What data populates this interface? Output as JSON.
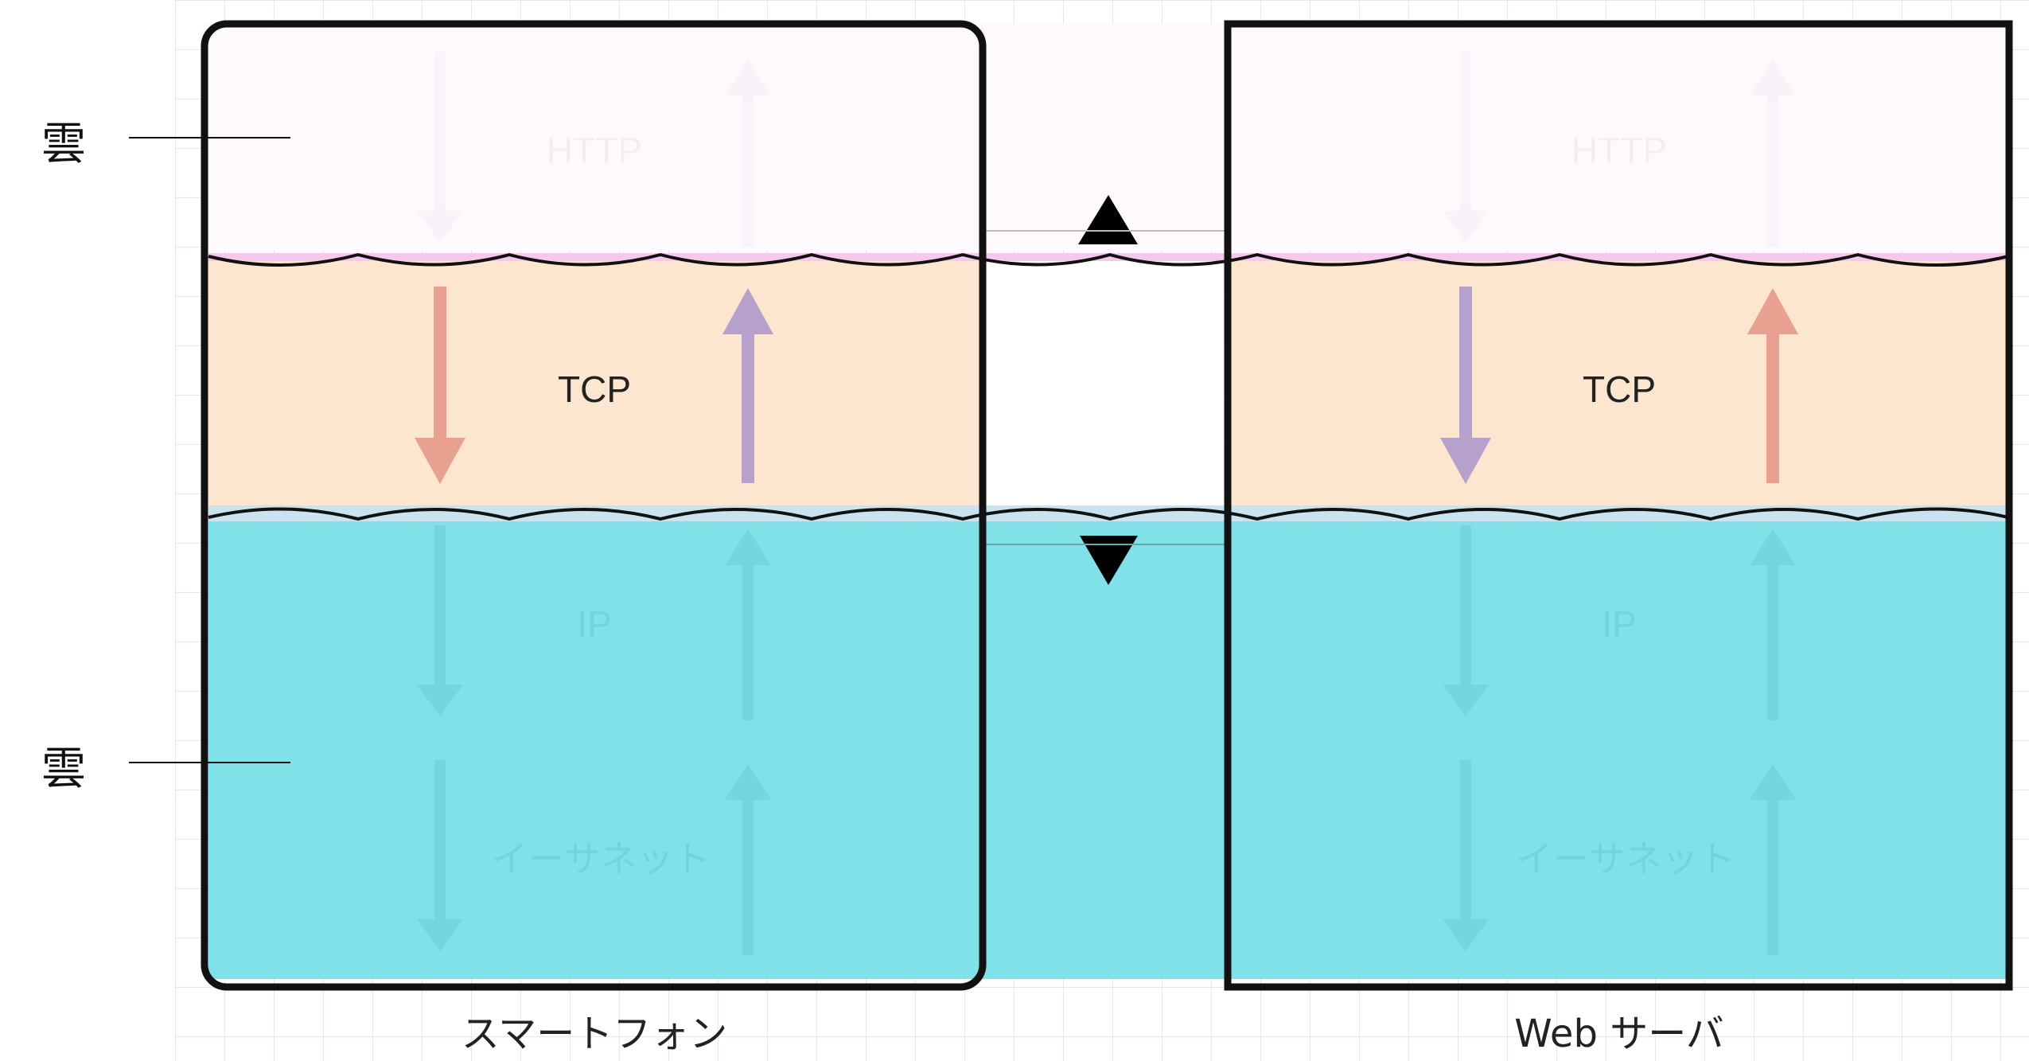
{
  "callouts": [
    {
      "label": "雲"
    },
    {
      "label": "雲"
    }
  ],
  "left_stack": {
    "caption": "スマートフォン",
    "layers": {
      "http": "HTTP",
      "tcp": "TCP",
      "ip": "IP",
      "ethernet": "イーサネット"
    }
  },
  "right_stack": {
    "caption": "Web サーバ",
    "layers": {
      "http": "HTTP",
      "tcp": "TCP",
      "ip": "IP",
      "ethernet": "イーサネット"
    }
  },
  "colors": {
    "upper_cloud": "#fdf9fd",
    "tcp_layer": "#fde6d0",
    "lower_cloud": "#81e1e8",
    "arrow_salmon": "#e8a090",
    "arrow_purple": "#b6a0cc",
    "grid": "#e8e8f2",
    "outline": "#111111"
  }
}
